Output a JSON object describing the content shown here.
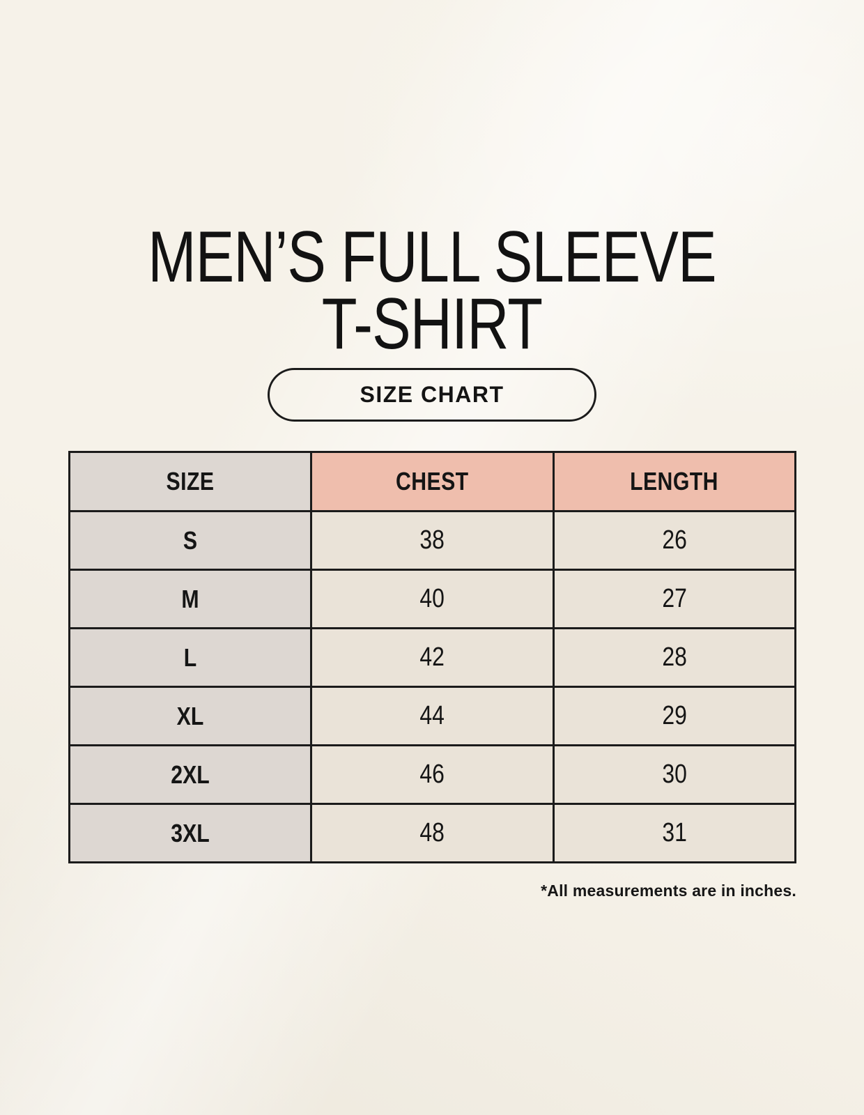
{
  "header": {
    "title_line1": "MEN’S FULL SLEEVE",
    "title_line2": "T-SHIRT",
    "size_chart_label": "SIZE CHART"
  },
  "footnote": "*All measurements are in inches.",
  "colors": {
    "page_bg": "#f6f2e9",
    "size_column_bg": "#ddd7d2",
    "accent_header_bg": "#efbead",
    "value_cell_bg": "#eae3d8",
    "border": "#1b1b1b",
    "text": "#151515"
  },
  "chart_data": {
    "type": "table",
    "title": "MEN’S FULL SLEEVE T-SHIRT — SIZE CHART",
    "columns": [
      "SIZE",
      "CHEST",
      "LENGTH"
    ],
    "rows": [
      {
        "size": "S",
        "chest": 38,
        "length": 26
      },
      {
        "size": "M",
        "chest": 40,
        "length": 27
      },
      {
        "size": "L",
        "chest": 42,
        "length": 28
      },
      {
        "size": "XL",
        "chest": 44,
        "length": 29
      },
      {
        "size": "2XL",
        "chest": 46,
        "length": 30
      },
      {
        "size": "3XL",
        "chest": 48,
        "length": 31
      }
    ],
    "unit_note": "*All measurements are in inches."
  }
}
